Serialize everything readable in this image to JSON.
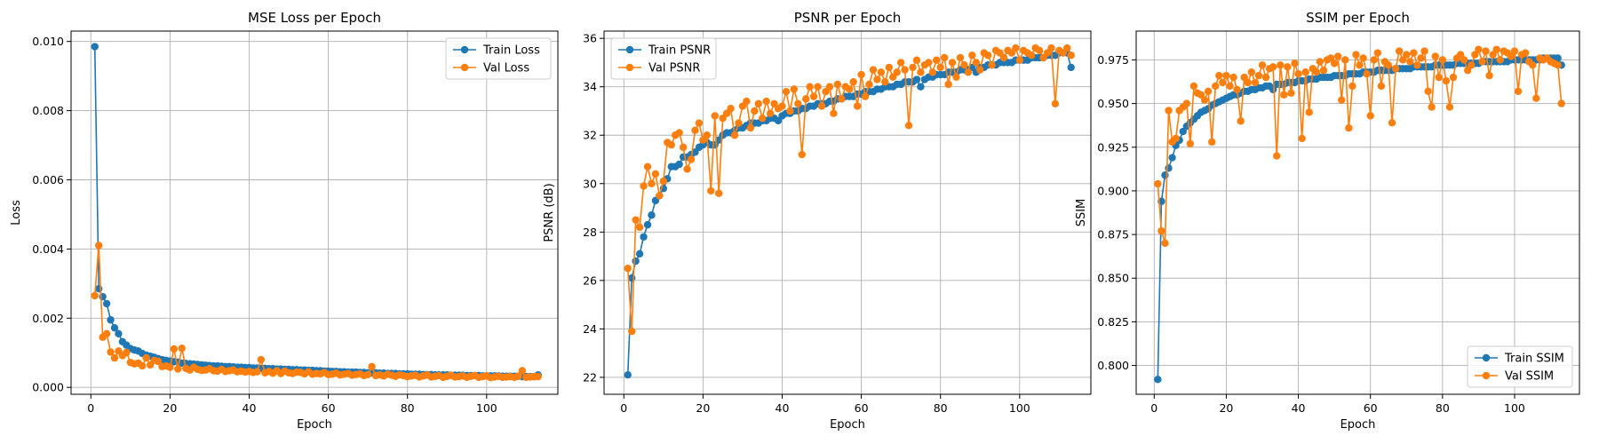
{
  "colors": {
    "train": "#1f77b4",
    "val": "#ff7f0e",
    "grid": "#b0b0b0"
  },
  "chart_data": [
    {
      "type": "line",
      "title": "MSE Loss per Epoch",
      "xlabel": "Epoch",
      "ylabel": "Loss",
      "xlim": [
        -5,
        118
      ],
      "ylim": [
        -0.0002,
        0.0103
      ],
      "xticks": [
        0,
        20,
        40,
        60,
        80,
        100
      ],
      "yticks": [
        0.0,
        0.002,
        0.004,
        0.006,
        0.008,
        0.01
      ],
      "ytick_labels": [
        "0.000",
        "0.002",
        "0.004",
        "0.006",
        "0.008",
        "0.010"
      ],
      "grid": true,
      "legend_position": "top-right",
      "series": [
        {
          "name": "Train Loss",
          "color": "#1f77b4",
          "values": [
            0.00985,
            0.00285,
            0.00262,
            0.00242,
            0.00195,
            0.00172,
            0.00155,
            0.00132,
            0.00122,
            0.00112,
            0.00108,
            0.00105,
            0.00098,
            0.00093,
            0.0009,
            0.00087,
            0.00083,
            0.0008,
            0.00078,
            0.00076,
            0.00074,
            0.00073,
            0.0007,
            0.00069,
            0.00068,
            0.00067,
            0.00066,
            0.00065,
            0.00064,
            0.00063,
            0.00062,
            0.00062,
            0.00061,
            0.0006,
            0.0006,
            0.00059,
            0.00058,
            0.00058,
            0.00057,
            0.00057,
            0.00056,
            0.00056,
            0.00055,
            0.00055,
            0.00054,
            0.00054,
            0.00053,
            0.00053,
            0.00052,
            0.00052,
            0.00051,
            0.00051,
            0.0005,
            0.0005,
            0.00049,
            0.00049,
            0.00048,
            0.00048,
            0.00047,
            0.00047,
            0.00046,
            0.00046,
            0.00045,
            0.00045,
            0.00044,
            0.00044,
            0.00044,
            0.00043,
            0.00043,
            0.00042,
            0.00042,
            0.00042,
            0.00041,
            0.00041,
            0.0004,
            0.0004,
            0.0004,
            0.00039,
            0.00039,
            0.00039,
            0.00038,
            0.00038,
            0.00038,
            0.00037,
            0.00037,
            0.00037,
            0.00036,
            0.00036,
            0.00036,
            0.00036,
            0.00035,
            0.00035,
            0.00035,
            0.00035,
            0.00034,
            0.00034,
            0.00034,
            0.00034,
            0.00033,
            0.00033,
            0.00033,
            0.00033,
            0.00033,
            0.00032,
            0.00032,
            0.00032,
            0.00032,
            0.00032,
            0.00031,
            0.00031,
            0.00031,
            0.00031,
            0.00036
          ]
        },
        {
          "name": "Val Loss",
          "color": "#ff7f0e",
          "values": [
            0.00265,
            0.0041,
            0.00145,
            0.00155,
            0.00102,
            0.00085,
            0.00105,
            0.00092,
            0.00101,
            0.00072,
            0.00068,
            0.0007,
            0.00062,
            0.00085,
            0.00065,
            0.00078,
            0.00075,
            0.0006,
            0.00062,
            0.00058,
            0.00111,
            0.00053,
            0.00113,
            0.00055,
            0.0005,
            0.00058,
            0.00052,
            0.00049,
            0.0005,
            0.00054,
            0.00048,
            0.00047,
            0.00052,
            0.00046,
            0.00048,
            0.0005,
            0.00045,
            0.00047,
            0.00044,
            0.00046,
            0.00043,
            0.00045,
            0.0008,
            0.00042,
            0.00046,
            0.00041,
            0.00048,
            0.0004,
            0.00047,
            0.00042,
            0.0004,
            0.00044,
            0.00043,
            0.00039,
            0.00045,
            0.00038,
            0.0004,
            0.00039,
            0.00043,
            0.00037,
            0.00038,
            0.00041,
            0.00036,
            0.00038,
            0.0004,
            0.00035,
            0.00037,
            0.00039,
            0.00034,
            0.00037,
            0.0006,
            0.00034,
            0.00036,
            0.00033,
            0.00038,
            0.00035,
            0.00032,
            0.00036,
            0.00034,
            0.00031,
            0.00033,
            0.00035,
            0.0003,
            0.00033,
            0.00036,
            0.0003,
            0.00032,
            0.00034,
            0.00029,
            0.00032,
            0.00035,
            0.0003,
            0.00031,
            0.00033,
            0.00029,
            0.00032,
            0.00034,
            0.00029,
            0.00031,
            0.00033,
            0.00028,
            0.0003,
            0.00032,
            0.00029,
            0.0003,
            0.00031,
            0.00029,
            0.00032,
            0.00048,
            0.00029,
            0.0003,
            0.00031,
            0.00031
          ]
        }
      ]
    },
    {
      "type": "line",
      "title": "PSNR per Epoch",
      "xlabel": "Epoch",
      "ylabel": "PSNR (dB)",
      "xlim": [
        -5,
        118
      ],
      "ylim": [
        21.3,
        36.3
      ],
      "xticks": [
        0,
        20,
        40,
        60,
        80,
        100
      ],
      "yticks": [
        22,
        24,
        26,
        28,
        30,
        32,
        34,
        36
      ],
      "ytick_labels": [
        "22",
        "24",
        "26",
        "28",
        "30",
        "32",
        "34",
        "36"
      ],
      "grid": true,
      "legend_position": "top-left",
      "series": [
        {
          "name": "Train PSNR",
          "color": "#1f77b4",
          "values": [
            22.1,
            26.1,
            26.8,
            27.1,
            27.8,
            28.3,
            28.7,
            29.3,
            29.5,
            29.8,
            30.2,
            30.7,
            30.7,
            30.8,
            31.1,
            31.1,
            31.2,
            31.3,
            31.5,
            31.6,
            31.7,
            31.6,
            31.6,
            31.8,
            32.0,
            32.1,
            32.1,
            32.2,
            32.3,
            32.3,
            32.4,
            32.5,
            32.5,
            32.5,
            32.6,
            32.6,
            32.7,
            32.7,
            32.6,
            32.8,
            32.9,
            32.9,
            33.0,
            33.0,
            33.1,
            33.1,
            33.2,
            33.2,
            33.3,
            33.3,
            33.3,
            33.4,
            33.4,
            33.5,
            33.5,
            33.6,
            33.6,
            33.6,
            33.7,
            33.7,
            33.8,
            33.8,
            33.8,
            33.9,
            33.9,
            34.0,
            34.0,
            34.0,
            34.1,
            34.1,
            34.2,
            34.2,
            34.2,
            34.3,
            34.0,
            34.3,
            34.4,
            34.4,
            34.5,
            34.5,
            34.5,
            34.6,
            34.6,
            34.6,
            34.7,
            34.7,
            34.7,
            34.8,
            34.6,
            34.8,
            34.8,
            34.9,
            34.9,
            34.9,
            35.0,
            35.0,
            35.0,
            35.0,
            35.1,
            35.1,
            35.1,
            35.1,
            35.2,
            35.2,
            35.2,
            35.2,
            35.3,
            35.3,
            35.3,
            35.4,
            35.4,
            35.4,
            34.8
          ]
        },
        {
          "name": "Val PSNR",
          "color": "#ff7f0e",
          "values": [
            26.5,
            23.9,
            28.5,
            28.2,
            29.9,
            30.7,
            30.0,
            30.4,
            29.5,
            30.1,
            31.7,
            31.6,
            32.0,
            32.1,
            31.5,
            30.6,
            31.0,
            32.2,
            32.5,
            31.8,
            32.0,
            29.7,
            32.8,
            29.6,
            32.7,
            32.9,
            33.1,
            32.0,
            32.5,
            33.2,
            33.4,
            32.3,
            33.0,
            33.3,
            32.7,
            33.4,
            32.9,
            33.3,
            33.1,
            33.2,
            33.8,
            33.0,
            33.9,
            33.3,
            31.2,
            33.5,
            34.0,
            33.6,
            34.0,
            33.2,
            33.8,
            34.0,
            32.9,
            34.1,
            33.5,
            34.0,
            33.9,
            34.2,
            33.2,
            34.5,
            33.6,
            34.1,
            34.7,
            34.3,
            34.6,
            34.2,
            34.8,
            34.4,
            34.6,
            35.0,
            34.7,
            32.4,
            34.8,
            35.1,
            34.6,
            34.9,
            35.0,
            34.6,
            35.1,
            34.8,
            35.2,
            34.1,
            35.0,
            34.4,
            35.2,
            34.9,
            34.6,
            35.3,
            35.0,
            34.7,
            35.4,
            35.3,
            34.9,
            35.5,
            35.4,
            35.2,
            35.5,
            35.4,
            35.6,
            35.1,
            35.5,
            35.4,
            35.3,
            35.6,
            35.5,
            35.2,
            35.4,
            35.6,
            33.3,
            35.5,
            35.4,
            35.6,
            35.3
          ]
        }
      ]
    },
    {
      "type": "line",
      "title": "SSIM per Epoch",
      "xlabel": "Epoch",
      "ylabel": "SSIM",
      "xlim": [
        -5,
        118
      ],
      "ylim": [
        0.7835,
        0.9915
      ],
      "xticks": [
        0,
        20,
        40,
        60,
        80,
        100
      ],
      "yticks": [
        0.8,
        0.825,
        0.85,
        0.875,
        0.9,
        0.925,
        0.95,
        0.975
      ],
      "ytick_labels": [
        "0.800",
        "0.825",
        "0.850",
        "0.875",
        "0.900",
        "0.925",
        "0.950",
        "0.975"
      ],
      "grid": true,
      "legend_position": "bottom-right",
      "series": [
        {
          "name": "Train SSIM",
          "color": "#1f77b4",
          "values": [
            0.792,
            0.894,
            0.909,
            0.913,
            0.919,
            0.926,
            0.929,
            0.934,
            0.937,
            0.939,
            0.941,
            0.943,
            0.945,
            0.946,
            0.947,
            0.949,
            0.95,
            0.951,
            0.952,
            0.953,
            0.954,
            0.955,
            0.955,
            0.956,
            0.957,
            0.957,
            0.958,
            0.958,
            0.959,
            0.959,
            0.96,
            0.96,
            0.958,
            0.961,
            0.961,
            0.961,
            0.962,
            0.962,
            0.962,
            0.963,
            0.963,
            0.963,
            0.964,
            0.964,
            0.964,
            0.965,
            0.965,
            0.965,
            0.965,
            0.966,
            0.966,
            0.966,
            0.966,
            0.967,
            0.967,
            0.967,
            0.967,
            0.968,
            0.968,
            0.968,
            0.968,
            0.969,
            0.969,
            0.969,
            0.969,
            0.969,
            0.97,
            0.97,
            0.97,
            0.97,
            0.97,
            0.971,
            0.971,
            0.971,
            0.971,
            0.971,
            0.971,
            0.972,
            0.972,
            0.972,
            0.972,
            0.972,
            0.972,
            0.973,
            0.973,
            0.973,
            0.973,
            0.973,
            0.973,
            0.973,
            0.974,
            0.974,
            0.974,
            0.974,
            0.974,
            0.974,
            0.974,
            0.974,
            0.975,
            0.975,
            0.975,
            0.975,
            0.975,
            0.975,
            0.975,
            0.975,
            0.975,
            0.976,
            0.976,
            0.976,
            0.976,
            0.976,
            0.972
          ]
        },
        {
          "name": "Val SSIM",
          "color": "#ff7f0e",
          "values": [
            0.904,
            0.877,
            0.87,
            0.946,
            0.928,
            0.93,
            0.946,
            0.948,
            0.95,
            0.927,
            0.96,
            0.956,
            0.955,
            0.952,
            0.957,
            0.928,
            0.96,
            0.966,
            0.962,
            0.966,
            0.96,
            0.965,
            0.958,
            0.94,
            0.965,
            0.962,
            0.968,
            0.962,
            0.966,
            0.972,
            0.965,
            0.97,
            0.971,
            0.92,
            0.972,
            0.955,
            0.971,
            0.956,
            0.973,
            0.967,
            0.93,
            0.968,
            0.945,
            0.97,
            0.968,
            0.974,
            0.969,
            0.975,
            0.976,
            0.973,
            0.977,
            0.952,
            0.975,
            0.936,
            0.96,
            0.978,
            0.972,
            0.976,
            0.967,
            0.943,
            0.975,
            0.979,
            0.96,
            0.974,
            0.972,
            0.939,
            0.97,
            0.98,
            0.975,
            0.978,
            0.974,
            0.979,
            0.972,
            0.976,
            0.98,
            0.957,
            0.948,
            0.977,
            0.965,
            0.975,
            0.963,
            0.948,
            0.965,
            0.976,
            0.978,
            0.975,
            0.969,
            0.972,
            0.978,
            0.981,
            0.974,
            0.98,
            0.966,
            0.978,
            0.981,
            0.975,
            0.98,
            0.979,
            0.977,
            0.98,
            0.957,
            0.978,
            0.979,
            0.974,
            0.972,
            0.953,
            0.976,
            0.975,
            0.976,
            0.974,
            0.973,
            0.972,
            0.95
          ]
        }
      ]
    }
  ]
}
